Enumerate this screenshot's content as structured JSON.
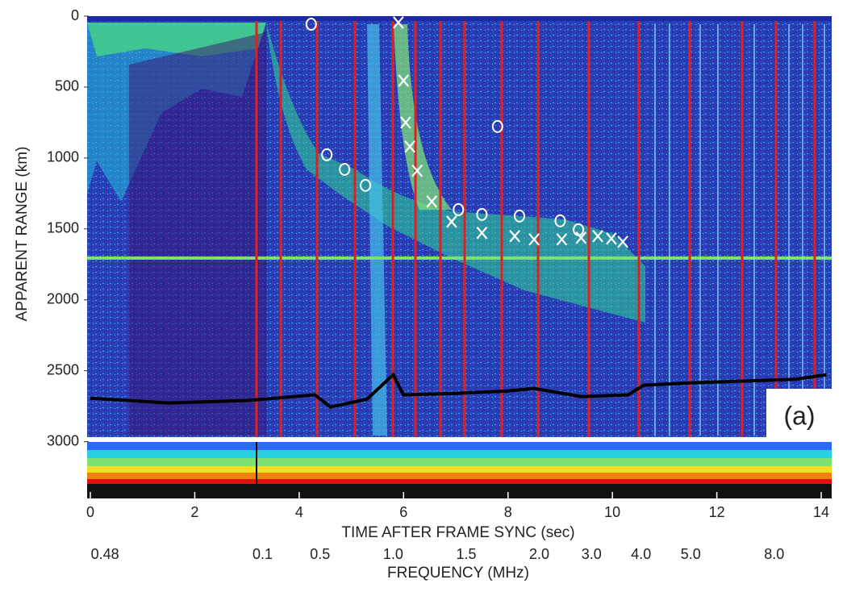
{
  "chart_data": {
    "type": "scatter",
    "y_label": "APPARENT RANGE (km)",
    "x_label": "TIME AFTER FRAME SYNC (sec)",
    "x2_label": "FREQUENCY (MHz)",
    "annotation": "(a)",
    "xlim": [
      0,
      14.2
    ],
    "ylim": [
      0,
      3400
    ],
    "y_inverted": true,
    "xticks": [
      0,
      2,
      4,
      6,
      8,
      10,
      12,
      14
    ],
    "yticks": [
      0,
      500,
      1000,
      1500,
      2000,
      2500,
      3000
    ],
    "x2ticks": [
      {
        "value": 0.28,
        "label": "0.48"
      },
      {
        "value": 3.3,
        "label": "0.1"
      },
      {
        "value": 4.4,
        "label": "0.5"
      },
      {
        "value": 5.8,
        "label": "1.0"
      },
      {
        "value": 7.2,
        "label": "1.5"
      },
      {
        "value": 8.6,
        "label": "2.0"
      },
      {
        "value": 9.6,
        "label": "3.0"
      },
      {
        "value": 10.55,
        "label": "4.0"
      },
      {
        "value": 11.5,
        "label": "5.0"
      },
      {
        "value": 13.1,
        "label": "8.0"
      }
    ],
    "series": [
      {
        "marker": "o",
        "color": "#ffffff",
        "x": [
          4.23,
          4.53,
          4.87,
          5.27,
          7.05,
          7.5,
          8.22,
          9.0,
          9.35,
          7.8
        ],
        "values": [
          57,
          977,
          1080,
          1193,
          1364,
          1398,
          1409,
          1443,
          1506,
          778
        ]
      },
      {
        "marker": "x",
        "color": "#ffffff",
        "x": [
          5.9,
          6.0,
          6.04,
          6.12,
          6.26,
          6.54,
          6.92,
          7.5,
          8.13,
          8.5,
          9.03,
          9.4,
          9.72,
          9.98,
          10.2
        ],
        "values": [
          45,
          455,
          750,
          920,
          1090,
          1307,
          1449,
          1528,
          1551,
          1574,
          1574,
          1562,
          1551,
          1568,
          1591
        ]
      },
      {
        "marker": "line",
        "color": "#000000",
        "x": [
          0,
          1.5,
          3,
          4.3,
          4.6,
          5.3,
          5.8,
          6.0,
          7.0,
          8.0,
          8.5,
          9.4,
          10.3,
          10.6,
          11.5,
          13.5,
          14.1
        ],
        "values": [
          2693,
          2727,
          2710,
          2670,
          2756,
          2700,
          2528,
          2670,
          2660,
          2642,
          2625,
          2682,
          2670,
          2602,
          2585,
          2560,
          2528
        ]
      }
    ]
  }
}
